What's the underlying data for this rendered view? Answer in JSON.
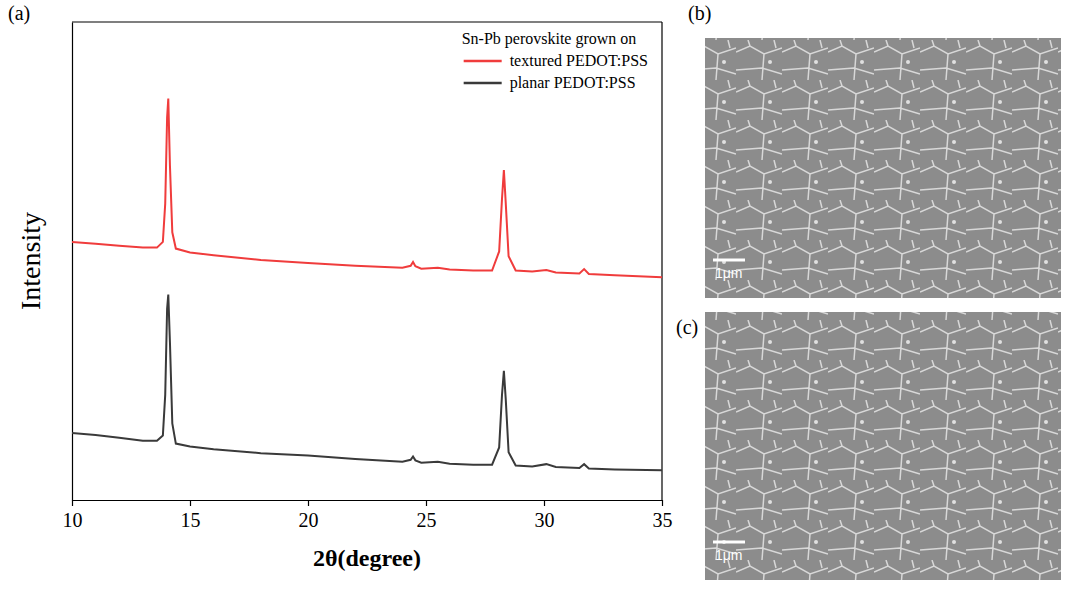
{
  "chart_data": {
    "type": "line",
    "panel_label": "(a)",
    "legend_title": "Sn-Pb perovskite grown on",
    "x_label": "2θ(degree)",
    "y_label": "Intensity",
    "x": [
      10,
      11,
      12,
      13,
      13.6,
      13.85,
      13.95,
      14.03,
      14.08,
      14.15,
      14.25,
      14.4,
      15,
      16,
      18,
      20,
      22,
      24,
      24.35,
      24.45,
      24.55,
      24.8,
      25.5,
      26,
      27,
      27.8,
      28.1,
      28.22,
      28.3,
      28.38,
      28.5,
      28.8,
      29.5,
      30.1,
      30.5,
      31.5,
      31.7,
      31.9,
      33,
      35
    ],
    "series": [
      {
        "name": "textured PEDOT:PSS",
        "color": "#f03c3c",
        "values": [
          54.0,
          53.6,
          53.2,
          52.8,
          52.8,
          54,
          62,
          80,
          84,
          70,
          56,
          52.6,
          51.8,
          51.2,
          50.2,
          49.6,
          49.0,
          48.6,
          49.0,
          49.8,
          48.9,
          48.4,
          48.6,
          48.2,
          48.0,
          48.0,
          52,
          63,
          69,
          62,
          51,
          48.0,
          47.8,
          48.1,
          47.6,
          47.4,
          48.3,
          47.3,
          47.0,
          46.6
        ]
      },
      {
        "name": "planar PEDOT:PSS",
        "color": "#3a3a3a",
        "values": [
          14.0,
          13.6,
          13.0,
          12.4,
          12.4,
          13.5,
          22,
          40,
          43,
          33,
          16,
          11.8,
          11.2,
          10.6,
          9.8,
          9.3,
          8.6,
          8.0,
          8.4,
          9.1,
          8.3,
          7.8,
          8.0,
          7.6,
          7.4,
          7.4,
          11,
          22,
          27,
          21,
          10,
          7.2,
          7.0,
          7.5,
          6.9,
          6.7,
          7.5,
          6.6,
          6.4,
          6.2
        ]
      }
    ],
    "xlim": [
      10,
      35
    ],
    "xticks": [
      10,
      15,
      20,
      25,
      30,
      35
    ],
    "ylim": [
      0,
      100
    ],
    "tick_labels": "x",
    "grid": false,
    "legend": "top-right"
  },
  "images": [
    {
      "panel_label": "(b)",
      "scale_bar": "1μm"
    },
    {
      "panel_label": "(c)",
      "scale_bar": "1μm"
    }
  ]
}
